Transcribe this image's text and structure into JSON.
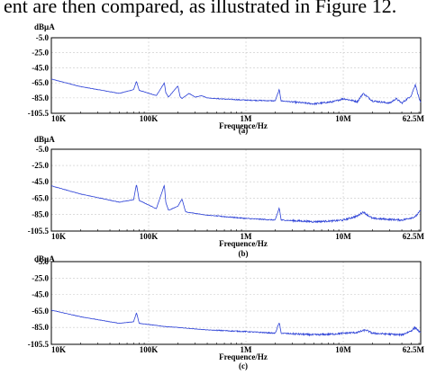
{
  "caption_fragment": "ent are then compared, as illustrated in Figure 12.",
  "colors": {
    "trace": "#2a3fd6",
    "axis": "#000000",
    "grid": "#c8c8c8"
  },
  "chart_data": [
    {
      "type": "line",
      "panel_label": "(a)",
      "ylabel": "dBµA",
      "xlabel": "Frequence/Hz",
      "xscale": "log",
      "xlim": [
        10000,
        62500000
      ],
      "ylim": [
        -105.5,
        -5.0
      ],
      "y_ticks": [
        "-5.0",
        "-25.0",
        "-45.0",
        "-65.0",
        "-85.0",
        "-105.5"
      ],
      "x_ticks": [
        {
          "value": 10000,
          "label": "10K"
        },
        {
          "value": 100000,
          "label": "100K"
        },
        {
          "value": 1000000,
          "label": "1M"
        },
        {
          "value": 10000000,
          "label": "10M"
        },
        {
          "value": 62500000,
          "label": "62.5M"
        }
      ],
      "grid": true,
      "series": [
        {
          "x": [
            10000,
            20000,
            50000,
            70000,
            75000,
            80000,
            120000,
            145000,
            150000,
            160000,
            200000,
            210000,
            220000,
            260000,
            300000,
            350000,
            400000,
            500000,
            1000000,
            2000000,
            2200000,
            2300000,
            5000000,
            8000000,
            10000000,
            14000000,
            16000000,
            20000000,
            30000000,
            35000000,
            40000000,
            50000000,
            55000000,
            60000000,
            62500000
          ],
          "y": [
            -60,
            -70,
            -79,
            -74,
            -63,
            -75,
            -82,
            -65,
            -78,
            -84,
            -69,
            -83,
            -86,
            -79,
            -84,
            -82,
            -85,
            -86,
            -88,
            -89,
            -74,
            -89,
            -93,
            -90,
            -86,
            -90,
            -79,
            -89,
            -92,
            -86,
            -92,
            -82,
            -67,
            -85,
            -92
          ]
        }
      ]
    },
    {
      "type": "line",
      "panel_label": "(b)",
      "ylabel": "dBµA",
      "xlabel": "Frequence/Hz",
      "xscale": "log",
      "xlim": [
        10000,
        62500000
      ],
      "ylim": [
        -105.5,
        -5.0
      ],
      "y_ticks": [
        "-5.0",
        "-25.0",
        "-45.0",
        "-65.0",
        "-85.0",
        "-105.5"
      ],
      "x_ticks": [
        {
          "value": 10000,
          "label": "10K"
        },
        {
          "value": 100000,
          "label": "100K"
        },
        {
          "value": 1000000,
          "label": "1M"
        },
        {
          "value": 10000000,
          "label": "10M"
        },
        {
          "value": 62500000,
          "label": "62.5M"
        }
      ],
      "grid": true,
      "series": [
        {
          "x": [
            10000,
            20000,
            50000,
            70000,
            75000,
            80000,
            120000,
            145000,
            150000,
            160000,
            200000,
            220000,
            240000,
            400000,
            1000000,
            2000000,
            2200000,
            2300000,
            5000000,
            8000000,
            10000000,
            14000000,
            16000000,
            20000000,
            40000000,
            55000000,
            62500000
          ],
          "y": [
            -50,
            -60,
            -70,
            -67,
            -48,
            -68,
            -78,
            -49,
            -70,
            -80,
            -75,
            -66,
            -82,
            -86,
            -90,
            -92,
            -77,
            -92,
            -94,
            -93,
            -92,
            -87,
            -82,
            -90,
            -92,
            -88,
            -80
          ]
        }
      ]
    },
    {
      "type": "line",
      "panel_label": "(c)",
      "ylabel": "dBµA",
      "xlabel": "Frequence/Hz",
      "xscale": "log",
      "xlim": [
        10000,
        62500000
      ],
      "ylim": [
        -105.5,
        -5.0
      ],
      "y_ticks": [
        "-5.0",
        "-25.0",
        "-45.0",
        "-65.0",
        "-85.0",
        "-105.5"
      ],
      "x_ticks": [
        {
          "value": 10000,
          "label": "10K"
        },
        {
          "value": 100000,
          "label": "100K"
        },
        {
          "value": 1000000,
          "label": "1M"
        },
        {
          "value": 10000000,
          "label": "10M"
        },
        {
          "value": 62500000,
          "label": "62.5M"
        }
      ],
      "grid": true,
      "series": [
        {
          "x": [
            10000,
            20000,
            50000,
            70000,
            75000,
            80000,
            150000,
            200000,
            400000,
            1000000,
            2000000,
            2200000,
            2300000,
            5000000,
            8000000,
            10000000,
            14000000,
            17000000,
            20000000,
            40000000,
            50000000,
            55000000,
            62500000
          ],
          "y": [
            -64,
            -72,
            -80,
            -78,
            -67,
            -80,
            -84,
            -85,
            -88,
            -90,
            -92,
            -79,
            -92,
            -94,
            -93,
            -92,
            -91,
            -88,
            -92,
            -94,
            -89,
            -85,
            -92
          ]
        }
      ]
    }
  ]
}
